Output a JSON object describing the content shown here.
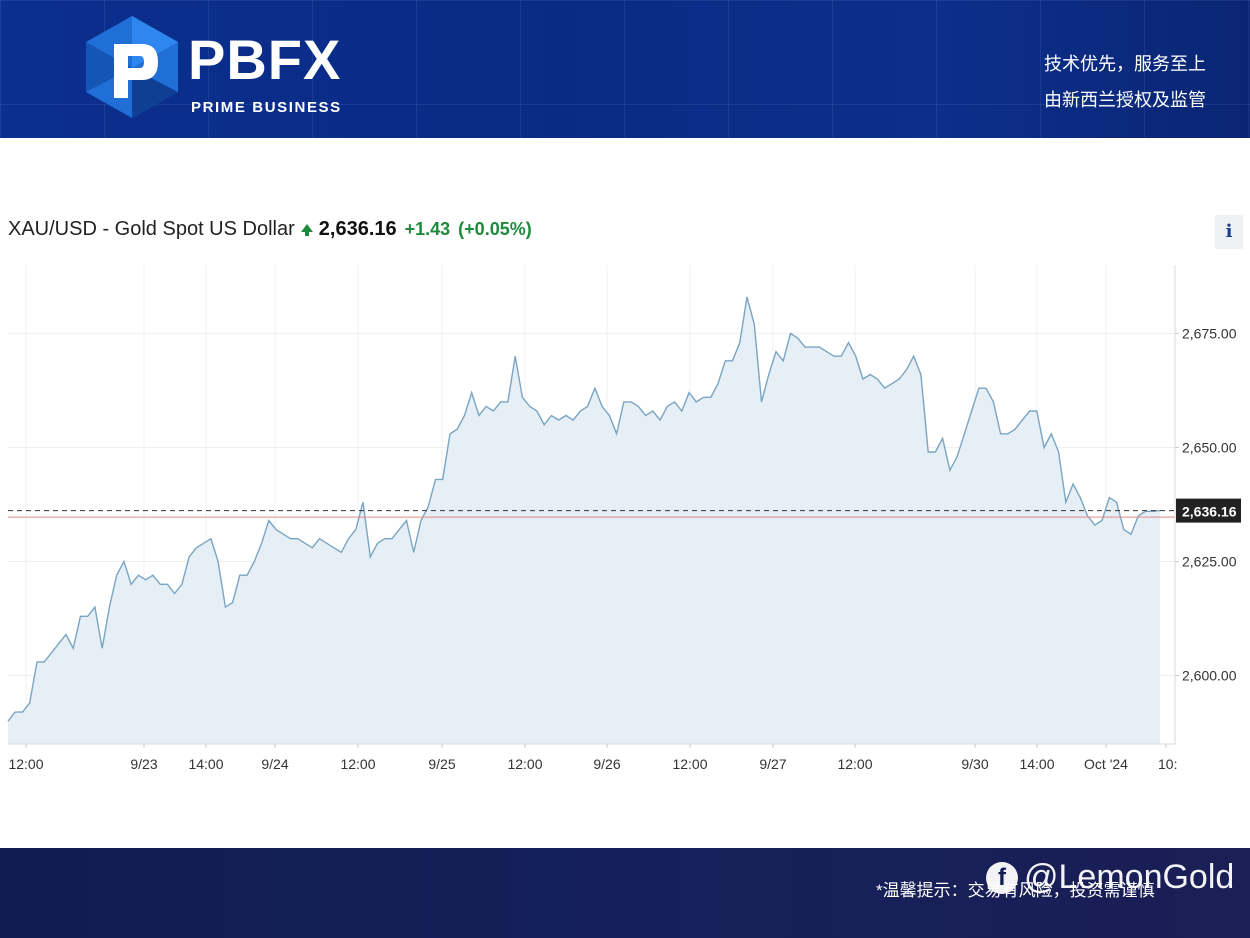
{
  "header": {
    "brand": "PBFX",
    "brand_sub": "PRIME BUSINESS",
    "slogan_line1": "技术优先，服务至上",
    "slogan_line2": "由新西兰授权及监管",
    "colors": {
      "background": "#0b2f8f",
      "logo_blue": "#1f6fd6"
    }
  },
  "quote": {
    "symbol": "XAU/USD - Gold Spot US Dollar",
    "price": "2,636.16",
    "change": "+1.43",
    "change_pct": "(+0.05%)",
    "up_color": "#1e8a3b",
    "arrow_icon": "up-arrow-icon"
  },
  "info_button": {
    "label": "i"
  },
  "footer": {
    "note": "*温馨提示：交易有风险，投资需谨慎",
    "watermark": "@LemonGold"
  },
  "chart_data": {
    "type": "area",
    "series": [
      {
        "values": [
          2590,
          2592,
          2592,
          2594,
          2603,
          2603,
          2605,
          2607,
          2609,
          2606,
          2613,
          2613,
          2615,
          2606,
          2615,
          2622,
          2625,
          2620,
          2622,
          2621,
          2622,
          2620,
          2620,
          2618,
          2620,
          2626,
          2628,
          2629,
          2630,
          2625,
          2615,
          2616,
          2622,
          2622,
          2625,
          2629,
          2634,
          2632,
          2631,
          2630,
          2630,
          2629,
          2628,
          2630,
          2629,
          2628,
          2627,
          2630,
          2632,
          2638,
          2626,
          2629,
          2630,
          2630,
          2632,
          2634,
          2627,
          2634,
          2637,
          2643,
          2643,
          2653,
          2654,
          2657,
          2662,
          2657,
          2659,
          2658,
          2660,
          2660,
          2670,
          2661,
          2659,
          2658,
          2655,
          2657,
          2656,
          2657,
          2656,
          2658,
          2659,
          2663,
          2659,
          2657,
          2653,
          2660,
          2660,
          2659,
          2657,
          2658,
          2656,
          2659,
          2660,
          2658,
          2662,
          2660,
          2661,
          2661,
          2664,
          2669,
          2669,
          2673,
          2683,
          2677,
          2660,
          2666,
          2671,
          2669,
          2675,
          2674,
          2672,
          2672,
          2672,
          2671,
          2670,
          2670,
          2673,
          2670,
          2665,
          2666,
          2665,
          2663,
          2664,
          2665,
          2667,
          2670,
          2666,
          2649,
          2649,
          2652,
          2645,
          2648,
          2653,
          2658,
          2663,
          2663,
          2660,
          2653,
          2653,
          2654,
          2656,
          2658,
          2658,
          2650,
          2653,
          2649,
          2638,
          2642,
          2639,
          2635,
          2633,
          2634,
          2639,
          2638,
          2632,
          2631,
          2635,
          2636,
          2636,
          2636.16
        ]
      }
    ],
    "reference_lines": {
      "last_price": 2636.16,
      "previous_close": 2634.73
    },
    "last_price_label": "2,636.16",
    "x_tick_labels": [
      "12:00",
      "9/23",
      "14:00",
      "9/24",
      "12:00",
      "9/25",
      "12:00",
      "9/26",
      "12:00",
      "9/27",
      "12:00",
      "9/30",
      "14:00",
      "Oct '24",
      "10:"
    ],
    "y_ticks": [
      2600,
      2625,
      2650,
      2675
    ],
    "y_tick_labels": [
      "2,600.00",
      "2,625.00",
      "2,650.00",
      "2,675.00"
    ],
    "ylim": [
      2585,
      2690
    ],
    "grid": true,
    "colors": {
      "line": "#7aa5c2",
      "fill": "#e6eef6",
      "reference": "#e08a8a",
      "last_price_line": "#333333",
      "label_bg": "#222222"
    }
  }
}
